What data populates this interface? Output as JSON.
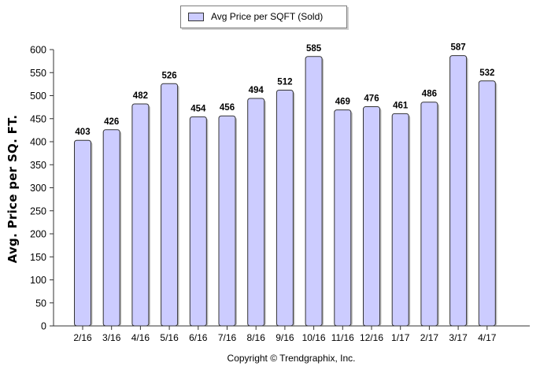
{
  "legend": {
    "label": "Avg Price per SQFT (Sold)"
  },
  "footer": {
    "copyright": "Copyright © Trendgraphix, Inc."
  },
  "chart_data": {
    "type": "bar",
    "title": "",
    "xlabel": "",
    "ylabel": "Avg. Price per SQ. FT.",
    "ylim": [
      0,
      600
    ],
    "yticks": [
      0,
      50,
      100,
      150,
      200,
      250,
      300,
      350,
      400,
      450,
      500,
      550,
      600
    ],
    "categories": [
      "2/16",
      "3/16",
      "4/16",
      "5/16",
      "6/16",
      "7/16",
      "8/16",
      "9/16",
      "10/16",
      "11/16",
      "12/16",
      "1/17",
      "2/17",
      "3/17",
      "4/17"
    ],
    "series": [
      {
        "name": "Avg Price per SQFT (Sold)",
        "values": [
          403,
          426,
          482,
          526,
          454,
          456,
          494,
          512,
          585,
          469,
          476,
          461,
          486,
          587,
          532
        ]
      }
    ],
    "grid": false,
    "legend_position": "top-center",
    "colors": {
      "bar_fill": "#ccccff",
      "bar_stroke": "#333333",
      "axis": "#333333"
    }
  }
}
